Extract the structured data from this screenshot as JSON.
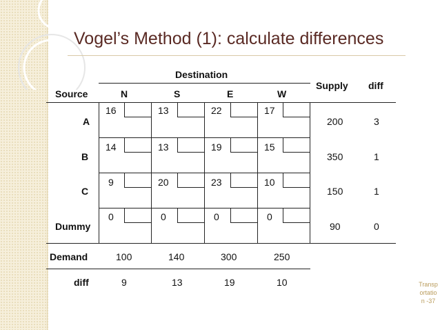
{
  "title": "Vogel’s Method (1): calculate differences",
  "table": {
    "destination_label": "Destination",
    "source_label": "Source",
    "supply_label": "Supply",
    "diff_label": "diff",
    "demand_label": "Demand",
    "columns": [
      "N",
      "S",
      "E",
      "W"
    ],
    "rows": [
      {
        "source": "A",
        "costs": [
          "16",
          "13",
          "22",
          "17"
        ],
        "supply": "200",
        "diff": "3"
      },
      {
        "source": "B",
        "costs": [
          "14",
          "13",
          "19",
          "15"
        ],
        "supply": "350",
        "diff": "1"
      },
      {
        "source": "C",
        "costs": [
          "9",
          "20",
          "23",
          "10"
        ],
        "supply": "150",
        "diff": "1"
      },
      {
        "source": "Dummy",
        "costs": [
          "0",
          "0",
          "0",
          "0"
        ],
        "supply": "90",
        "diff": "0"
      }
    ],
    "demand": [
      "100",
      "140",
      "300",
      "250"
    ],
    "col_diff": [
      "9",
      "13",
      "19",
      "10"
    ]
  },
  "footer": {
    "slide_label": "Transportation -37"
  },
  "colors": {
    "title": "#5a2a24",
    "accent": "#b99b5b",
    "strip": "#f6efdb"
  }
}
